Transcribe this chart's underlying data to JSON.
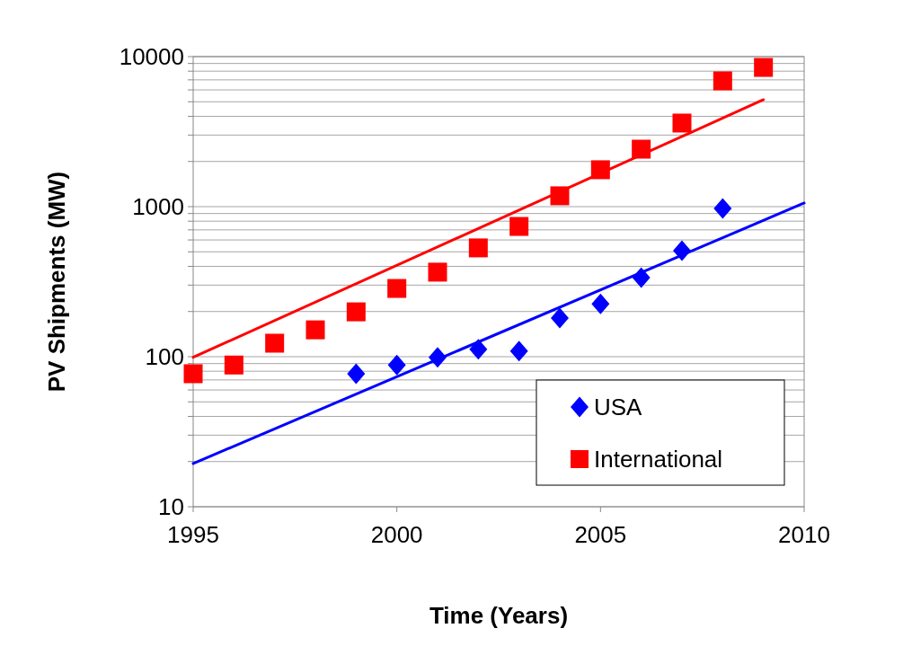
{
  "chart_data": {
    "type": "scatter",
    "xlabel": "Time (Years)",
    "ylabel": "PV Shipments (MW)",
    "log": "y",
    "grid": "y",
    "legend": "bottom right",
    "xlim": [
      1995,
      2010
    ],
    "xticks": [
      1995,
      2000,
      2005,
      2010
    ],
    "ylim": [
      10,
      10000
    ],
    "yticks": [
      10,
      {
        "value": 20,
        "label": null
      },
      {
        "value": 30,
        "label": null
      },
      {
        "value": 40,
        "label": null
      },
      {
        "value": 50,
        "label": null
      },
      {
        "value": 60,
        "label": null
      },
      {
        "value": 70,
        "label": null
      },
      {
        "value": 80,
        "label": null
      },
      {
        "value": 90,
        "label": null
      },
      100,
      {
        "value": 200,
        "label": null
      },
      {
        "value": 300,
        "label": null
      },
      {
        "value": 400,
        "label": null
      },
      {
        "value": 500,
        "label": null
      },
      {
        "value": 600,
        "label": null
      },
      {
        "value": 700,
        "label": null
      },
      {
        "value": 800,
        "label": null
      },
      {
        "value": 900,
        "label": null
      },
      1000,
      {
        "value": 2000,
        "label": null
      },
      {
        "value": 3000,
        "label": null
      },
      {
        "value": 4000,
        "label": null
      },
      {
        "value": 5000,
        "label": null
      },
      {
        "value": 6000,
        "label": null
      },
      {
        "value": 7000,
        "label": null
      },
      {
        "value": 8000,
        "label": null
      },
      {
        "value": 9000,
        "label": null
      },
      10000
    ],
    "series": [
      {
        "type": "line",
        "color": "#ff0000",
        "x": [
          1995,
          2009
        ],
        "values": [
          99,
          5160
        ],
        "marker": "none"
      },
      {
        "type": "line",
        "color": "#0000ff",
        "x": [
          1995,
          2010
        ],
        "values": [
          19.4,
          1057
        ],
        "marker": "none"
      },
      {
        "name": "USA",
        "type": "scatter",
        "marker": "diamond",
        "color": "#0000ff",
        "x": [
          1999,
          2000,
          2001,
          2002,
          2003,
          2004,
          2005,
          2006,
          2007,
          2008
        ],
        "values": [
          77,
          88,
          99,
          112,
          109,
          181,
          225,
          336,
          509,
          973
        ]
      },
      {
        "name": "International",
        "type": "scatter",
        "marker": "square",
        "color": "#ff0000",
        "x": [
          1995,
          1996,
          1997,
          1998,
          1999,
          2000,
          2001,
          2002,
          2003,
          2004,
          2005,
          2006,
          2007,
          2008,
          2009
        ],
        "values": [
          77,
          88,
          123,
          151,
          199,
          285,
          366,
          531,
          738,
          1181,
          1762,
          2416,
          3606,
          6890,
          8470
        ]
      }
    ]
  }
}
